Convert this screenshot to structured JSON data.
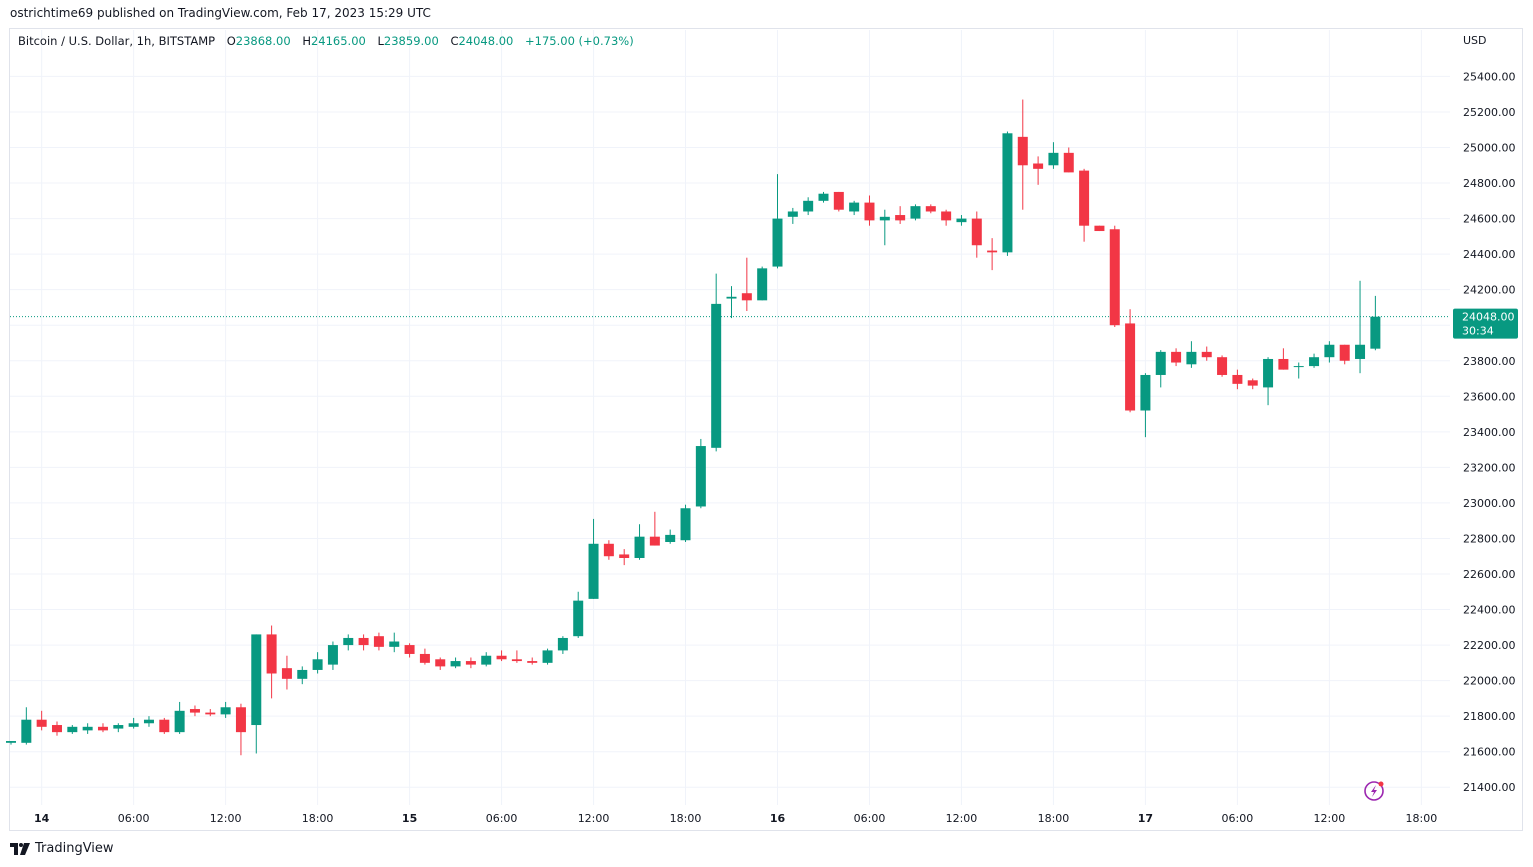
{
  "header": {
    "published_by": "ostrichtime69 published on TradingView.com, Feb 17, 2023 15:29 UTC"
  },
  "legend": {
    "symbol": "Bitcoin / U.S. Dollar, 1h, BITSTAMP",
    "open_label": "O",
    "open": "23868.00",
    "high_label": "H",
    "high": "24165.00",
    "low_label": "L",
    "low": "23859.00",
    "close_label": "C",
    "close": "24048.00",
    "change": "+175.00 (+0.73%)"
  },
  "price_axis": {
    "currency": "USD",
    "last_price": "24048.00",
    "countdown": "30:34"
  },
  "footer": {
    "brand": "TradingView"
  },
  "colors": {
    "up": "#089981",
    "down": "#f23645",
    "grid": "#f0f3fa",
    "last_price_line": "#089981",
    "lightning": "#9c27b0"
  },
  "chart_data": {
    "type": "candlestick",
    "interval": "1h",
    "ylim": [
      21300,
      25560
    ],
    "y_ticks": [
      21400,
      21600,
      21800,
      22000,
      22200,
      22400,
      22600,
      22800,
      23000,
      23200,
      23400,
      23600,
      23800,
      24000,
      24200,
      24400,
      24600,
      24800,
      25000,
      25200,
      25400
    ],
    "x_ticks": [
      {
        "bar": 2,
        "label": "14",
        "bold": true
      },
      {
        "bar": 8,
        "label": "06:00",
        "bold": false
      },
      {
        "bar": 14,
        "label": "12:00",
        "bold": false
      },
      {
        "bar": 20,
        "label": "18:00",
        "bold": false
      },
      {
        "bar": 26,
        "label": "15",
        "bold": true
      },
      {
        "bar": 32,
        "label": "06:00",
        "bold": false
      },
      {
        "bar": 38,
        "label": "12:00",
        "bold": false
      },
      {
        "bar": 44,
        "label": "18:00",
        "bold": false
      },
      {
        "bar": 50,
        "label": "16",
        "bold": true
      },
      {
        "bar": 56,
        "label": "06:00",
        "bold": false
      },
      {
        "bar": 62,
        "label": "12:00",
        "bold": false
      },
      {
        "bar": 68,
        "label": "18:00",
        "bold": false
      },
      {
        "bar": 74,
        "label": "17",
        "bold": true
      },
      {
        "bar": 80,
        "label": "06:00",
        "bold": false
      },
      {
        "bar": 86,
        "label": "12:00",
        "bold": false
      },
      {
        "bar": 92,
        "label": "18:00",
        "bold": false
      }
    ],
    "last_price": 24048,
    "candles": [
      {
        "o": 21650,
        "h": 21660,
        "l": 21640,
        "c": 21660
      },
      {
        "o": 21650,
        "h": 21850,
        "l": 21640,
        "c": 21780
      },
      {
        "o": 21780,
        "h": 21830,
        "l": 21720,
        "c": 21740
      },
      {
        "o": 21750,
        "h": 21770,
        "l": 21690,
        "c": 21710
      },
      {
        "o": 21710,
        "h": 21750,
        "l": 21700,
        "c": 21740
      },
      {
        "o": 21720,
        "h": 21760,
        "l": 21700,
        "c": 21740
      },
      {
        "o": 21740,
        "h": 21760,
        "l": 21710,
        "c": 21720
      },
      {
        "o": 21730,
        "h": 21760,
        "l": 21710,
        "c": 21750
      },
      {
        "o": 21740,
        "h": 21790,
        "l": 21730,
        "c": 21760
      },
      {
        "o": 21760,
        "h": 21800,
        "l": 21740,
        "c": 21780
      },
      {
        "o": 21780,
        "h": 21790,
        "l": 21700,
        "c": 21710
      },
      {
        "o": 21710,
        "h": 21880,
        "l": 21700,
        "c": 21830
      },
      {
        "o": 21840,
        "h": 21860,
        "l": 21800,
        "c": 21820
      },
      {
        "o": 21820,
        "h": 21840,
        "l": 21800,
        "c": 21810
      },
      {
        "o": 21810,
        "h": 21880,
        "l": 21790,
        "c": 21850
      },
      {
        "o": 21850,
        "h": 21870,
        "l": 21580,
        "c": 21710
      },
      {
        "o": 21750,
        "h": 22260,
        "l": 21590,
        "c": 22260
      },
      {
        "o": 22260,
        "h": 22310,
        "l": 21900,
        "c": 22040
      },
      {
        "o": 22070,
        "h": 22140,
        "l": 21950,
        "c": 22010
      },
      {
        "o": 22010,
        "h": 22080,
        "l": 21980,
        "c": 22060
      },
      {
        "o": 22060,
        "h": 22160,
        "l": 22040,
        "c": 22120
      },
      {
        "o": 22090,
        "h": 22220,
        "l": 22060,
        "c": 22200
      },
      {
        "o": 22200,
        "h": 22260,
        "l": 22170,
        "c": 22240
      },
      {
        "o": 22240,
        "h": 22260,
        "l": 22170,
        "c": 22200
      },
      {
        "o": 22250,
        "h": 22270,
        "l": 22170,
        "c": 22190
      },
      {
        "o": 22190,
        "h": 22270,
        "l": 22160,
        "c": 22220
      },
      {
        "o": 22200,
        "h": 22210,
        "l": 22130,
        "c": 22150
      },
      {
        "o": 22150,
        "h": 22180,
        "l": 22090,
        "c": 22100
      },
      {
        "o": 22120,
        "h": 22130,
        "l": 22060,
        "c": 22080
      },
      {
        "o": 22080,
        "h": 22130,
        "l": 22070,
        "c": 22110
      },
      {
        "o": 22110,
        "h": 22130,
        "l": 22070,
        "c": 22090
      },
      {
        "o": 22090,
        "h": 22160,
        "l": 22080,
        "c": 22140
      },
      {
        "o": 22140,
        "h": 22170,
        "l": 22110,
        "c": 22120
      },
      {
        "o": 22120,
        "h": 22170,
        "l": 22100,
        "c": 22110
      },
      {
        "o": 22110,
        "h": 22130,
        "l": 22090,
        "c": 22100
      },
      {
        "o": 22100,
        "h": 22180,
        "l": 22090,
        "c": 22170
      },
      {
        "o": 22170,
        "h": 22250,
        "l": 22150,
        "c": 22240
      },
      {
        "o": 22250,
        "h": 22500,
        "l": 22240,
        "c": 22450
      },
      {
        "o": 22460,
        "h": 22910,
        "l": 22460,
        "c": 22770
      },
      {
        "o": 22770,
        "h": 22790,
        "l": 22680,
        "c": 22700
      },
      {
        "o": 22710,
        "h": 22740,
        "l": 22650,
        "c": 22690
      },
      {
        "o": 22690,
        "h": 22880,
        "l": 22680,
        "c": 22810
      },
      {
        "o": 22810,
        "h": 22950,
        "l": 22760,
        "c": 22760
      },
      {
        "o": 22780,
        "h": 22850,
        "l": 22770,
        "c": 22820
      },
      {
        "o": 22790,
        "h": 22990,
        "l": 22780,
        "c": 22970
      },
      {
        "o": 22980,
        "h": 23360,
        "l": 22970,
        "c": 23320
      },
      {
        "o": 23310,
        "h": 24290,
        "l": 23290,
        "c": 24120
      },
      {
        "o": 24150,
        "h": 24220,
        "l": 24040,
        "c": 24160
      },
      {
        "o": 24180,
        "h": 24380,
        "l": 24080,
        "c": 24140
      },
      {
        "o": 24140,
        "h": 24330,
        "l": 24140,
        "c": 24320
      },
      {
        "o": 24330,
        "h": 24850,
        "l": 24320,
        "c": 24600
      },
      {
        "o": 24610,
        "h": 24660,
        "l": 24570,
        "c": 24640
      },
      {
        "o": 24640,
        "h": 24720,
        "l": 24620,
        "c": 24700
      },
      {
        "o": 24700,
        "h": 24750,
        "l": 24690,
        "c": 24740
      },
      {
        "o": 24750,
        "h": 24750,
        "l": 24640,
        "c": 24650
      },
      {
        "o": 24640,
        "h": 24700,
        "l": 24620,
        "c": 24690
      },
      {
        "o": 24690,
        "h": 24730,
        "l": 24560,
        "c": 24590
      },
      {
        "o": 24590,
        "h": 24650,
        "l": 24450,
        "c": 24610
      },
      {
        "o": 24620,
        "h": 24670,
        "l": 24570,
        "c": 24590
      },
      {
        "o": 24600,
        "h": 24680,
        "l": 24590,
        "c": 24670
      },
      {
        "o": 24670,
        "h": 24680,
        "l": 24630,
        "c": 24640
      },
      {
        "o": 24640,
        "h": 24650,
        "l": 24560,
        "c": 24590
      },
      {
        "o": 24580,
        "h": 24620,
        "l": 24560,
        "c": 24600
      },
      {
        "o": 24600,
        "h": 24640,
        "l": 24380,
        "c": 24450
      },
      {
        "o": 24420,
        "h": 24490,
        "l": 24310,
        "c": 24410
      },
      {
        "o": 24410,
        "h": 25090,
        "l": 24390,
        "c": 25080
      },
      {
        "o": 25060,
        "h": 25270,
        "l": 24650,
        "c": 24900
      },
      {
        "o": 24910,
        "h": 24950,
        "l": 24790,
        "c": 24880
      },
      {
        "o": 24900,
        "h": 25030,
        "l": 24880,
        "c": 24970
      },
      {
        "o": 24970,
        "h": 25000,
        "l": 24860,
        "c": 24860
      },
      {
        "o": 24870,
        "h": 24880,
        "l": 24470,
        "c": 24560
      },
      {
        "o": 24560,
        "h": 24560,
        "l": 24530,
        "c": 24530
      },
      {
        "o": 24540,
        "h": 24560,
        "l": 23990,
        "c": 24000
      },
      {
        "o": 24010,
        "h": 24090,
        "l": 23510,
        "c": 23520
      },
      {
        "o": 23520,
        "h": 23730,
        "l": 23370,
        "c": 23720
      },
      {
        "o": 23720,
        "h": 23860,
        "l": 23650,
        "c": 23850
      },
      {
        "o": 23850,
        "h": 23870,
        "l": 23770,
        "c": 23790
      },
      {
        "o": 23780,
        "h": 23910,
        "l": 23760,
        "c": 23850
      },
      {
        "o": 23850,
        "h": 23880,
        "l": 23800,
        "c": 23820
      },
      {
        "o": 23820,
        "h": 23830,
        "l": 23710,
        "c": 23720
      },
      {
        "o": 23720,
        "h": 23750,
        "l": 23640,
        "c": 23670
      },
      {
        "o": 23690,
        "h": 23700,
        "l": 23640,
        "c": 23660
      },
      {
        "o": 23650,
        "h": 23820,
        "l": 23550,
        "c": 23810
      },
      {
        "o": 23810,
        "h": 23870,
        "l": 23750,
        "c": 23750
      },
      {
        "o": 23770,
        "h": 23790,
        "l": 23700,
        "c": 23770
      },
      {
        "o": 23770,
        "h": 23840,
        "l": 23760,
        "c": 23820
      },
      {
        "o": 23820,
        "h": 23910,
        "l": 23790,
        "c": 23890
      },
      {
        "o": 23890,
        "h": 23890,
        "l": 23780,
        "c": 23800
      },
      {
        "o": 23810,
        "h": 24250,
        "l": 23730,
        "c": 23890
      },
      {
        "o": 23868,
        "h": 24165,
        "l": 23859,
        "c": 24048
      }
    ]
  }
}
